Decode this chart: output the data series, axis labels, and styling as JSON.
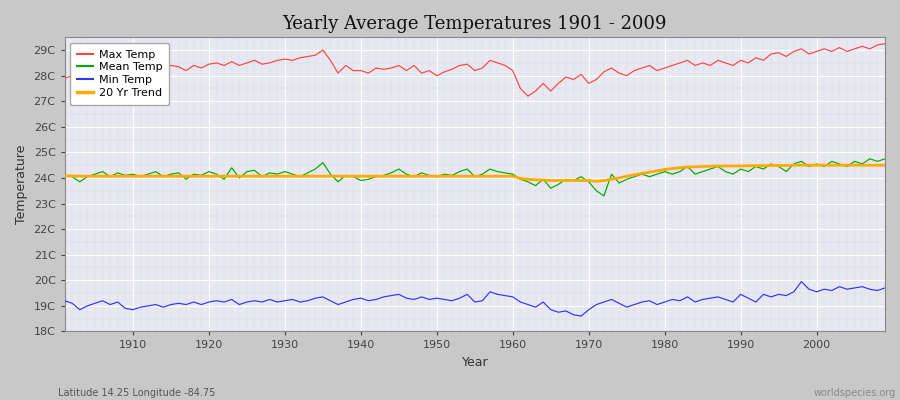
{
  "title": "Yearly Average Temperatures 1901 - 2009",
  "xlabel": "Year",
  "ylabel": "Temperature",
  "bottom_left": "Latitude 14.25 Longitude -84.75",
  "bottom_right": "worldspecies.org",
  "fig_bg_color": "#c8c8c8",
  "plot_bg_color": "#e8e8f0",
  "years": [
    1901,
    1902,
    1903,
    1904,
    1905,
    1906,
    1907,
    1908,
    1909,
    1910,
    1911,
    1912,
    1913,
    1914,
    1915,
    1916,
    1917,
    1918,
    1919,
    1920,
    1921,
    1922,
    1923,
    1924,
    1925,
    1926,
    1927,
    1928,
    1929,
    1930,
    1931,
    1932,
    1933,
    1934,
    1935,
    1936,
    1937,
    1938,
    1939,
    1940,
    1941,
    1942,
    1943,
    1944,
    1945,
    1946,
    1947,
    1948,
    1949,
    1950,
    1951,
    1952,
    1953,
    1954,
    1955,
    1956,
    1957,
    1958,
    1959,
    1960,
    1961,
    1962,
    1963,
    1964,
    1965,
    1966,
    1967,
    1968,
    1969,
    1970,
    1971,
    1972,
    1973,
    1974,
    1975,
    1976,
    1977,
    1978,
    1979,
    1980,
    1981,
    1982,
    1983,
    1984,
    1985,
    1986,
    1987,
    1988,
    1989,
    1990,
    1991,
    1992,
    1993,
    1994,
    1995,
    1996,
    1997,
    1998,
    1999,
    2000,
    2001,
    2002,
    2003,
    2004,
    2005,
    2006,
    2007,
    2008,
    2009
  ],
  "max_temp": [
    27.9,
    28.0,
    28.1,
    28.15,
    28.0,
    28.2,
    28.1,
    28.3,
    28.2,
    28.05,
    28.1,
    28.2,
    28.3,
    28.25,
    28.4,
    28.35,
    28.2,
    28.4,
    28.3,
    28.45,
    28.5,
    28.4,
    28.55,
    28.4,
    28.5,
    28.6,
    28.45,
    28.5,
    28.6,
    28.65,
    28.6,
    28.7,
    28.75,
    28.8,
    29.0,
    28.6,
    28.1,
    28.4,
    28.2,
    28.2,
    28.1,
    28.3,
    28.25,
    28.3,
    28.4,
    28.2,
    28.4,
    28.1,
    28.2,
    28.0,
    28.15,
    28.25,
    28.4,
    28.45,
    28.2,
    28.3,
    28.6,
    28.5,
    28.4,
    28.2,
    27.5,
    27.2,
    27.4,
    27.7,
    27.4,
    27.7,
    27.95,
    27.85,
    28.05,
    27.7,
    27.85,
    28.15,
    28.3,
    28.1,
    28.0,
    28.2,
    28.3,
    28.4,
    28.2,
    28.3,
    28.4,
    28.5,
    28.6,
    28.4,
    28.5,
    28.4,
    28.6,
    28.5,
    28.4,
    28.6,
    28.5,
    28.7,
    28.6,
    28.85,
    28.9,
    28.75,
    28.95,
    29.05,
    28.85,
    28.95,
    29.05,
    28.95,
    29.1,
    28.95,
    29.05,
    29.15,
    29.05,
    29.2,
    29.25
  ],
  "mean_temp": [
    24.1,
    24.05,
    23.85,
    24.05,
    24.15,
    24.25,
    24.05,
    24.2,
    24.1,
    24.15,
    24.05,
    24.15,
    24.25,
    24.05,
    24.15,
    24.2,
    23.95,
    24.15,
    24.1,
    24.25,
    24.15,
    23.95,
    24.4,
    24.0,
    24.25,
    24.3,
    24.05,
    24.2,
    24.15,
    24.25,
    24.15,
    24.05,
    24.2,
    24.35,
    24.6,
    24.15,
    23.85,
    24.1,
    24.05,
    23.9,
    23.95,
    24.05,
    24.1,
    24.2,
    24.35,
    24.15,
    24.05,
    24.2,
    24.1,
    24.05,
    24.15,
    24.1,
    24.25,
    24.35,
    24.05,
    24.15,
    24.35,
    24.25,
    24.2,
    24.15,
    23.95,
    23.85,
    23.7,
    23.95,
    23.6,
    23.75,
    23.95,
    23.9,
    24.05,
    23.85,
    23.5,
    23.3,
    24.15,
    23.8,
    23.95,
    24.05,
    24.15,
    24.05,
    24.15,
    24.25,
    24.15,
    24.25,
    24.45,
    24.15,
    24.25,
    24.35,
    24.45,
    24.25,
    24.15,
    24.35,
    24.25,
    24.45,
    24.35,
    24.55,
    24.45,
    24.25,
    24.55,
    24.65,
    24.45,
    24.55,
    24.45,
    24.65,
    24.55,
    24.45,
    24.65,
    24.55,
    24.75,
    24.65,
    24.75
  ],
  "min_temp": [
    19.2,
    19.1,
    18.85,
    19.0,
    19.1,
    19.2,
    19.05,
    19.15,
    18.9,
    18.85,
    18.95,
    19.0,
    19.05,
    18.95,
    19.05,
    19.1,
    19.05,
    19.15,
    19.05,
    19.15,
    19.2,
    19.15,
    19.25,
    19.05,
    19.15,
    19.2,
    19.15,
    19.25,
    19.15,
    19.2,
    19.25,
    19.15,
    19.2,
    19.3,
    19.35,
    19.2,
    19.05,
    19.15,
    19.25,
    19.3,
    19.2,
    19.25,
    19.35,
    19.4,
    19.45,
    19.3,
    19.25,
    19.35,
    19.25,
    19.3,
    19.25,
    19.2,
    19.3,
    19.45,
    19.15,
    19.2,
    19.55,
    19.45,
    19.4,
    19.35,
    19.15,
    19.05,
    18.95,
    19.15,
    18.85,
    18.75,
    18.8,
    18.65,
    18.6,
    18.85,
    19.05,
    19.15,
    19.25,
    19.1,
    18.95,
    19.05,
    19.15,
    19.2,
    19.05,
    19.15,
    19.25,
    19.2,
    19.35,
    19.15,
    19.25,
    19.3,
    19.35,
    19.25,
    19.15,
    19.45,
    19.3,
    19.15,
    19.45,
    19.35,
    19.45,
    19.4,
    19.55,
    19.95,
    19.65,
    19.55,
    19.65,
    19.6,
    19.75,
    19.65,
    19.7,
    19.75,
    19.65,
    19.6,
    19.7
  ],
  "trend": [
    24.08,
    24.08,
    24.07,
    24.07,
    24.07,
    24.07,
    24.07,
    24.07,
    24.07,
    24.07,
    24.07,
    24.07,
    24.07,
    24.07,
    24.07,
    24.07,
    24.07,
    24.07,
    24.07,
    24.07,
    24.07,
    24.07,
    24.07,
    24.07,
    24.07,
    24.07,
    24.07,
    24.07,
    24.07,
    24.07,
    24.07,
    24.07,
    24.07,
    24.07,
    24.07,
    24.07,
    24.07,
    24.07,
    24.07,
    24.07,
    24.07,
    24.07,
    24.07,
    24.07,
    24.07,
    24.07,
    24.07,
    24.07,
    24.07,
    24.07,
    24.07,
    24.07,
    24.07,
    24.07,
    24.07,
    24.07,
    24.07,
    24.07,
    24.07,
    24.07,
    23.98,
    23.95,
    23.93,
    23.92,
    23.9,
    23.9,
    23.9,
    23.9,
    23.9,
    23.9,
    23.87,
    23.9,
    23.95,
    24.0,
    24.07,
    24.12,
    24.18,
    24.23,
    24.28,
    24.33,
    24.37,
    24.4,
    24.43,
    24.44,
    24.45,
    24.46,
    24.47,
    24.47,
    24.47,
    24.47,
    24.48,
    24.48,
    24.48,
    24.49,
    24.49,
    24.49,
    24.5,
    24.5,
    24.5,
    24.5,
    24.5,
    24.5,
    24.5,
    24.5,
    24.5,
    24.5,
    24.5,
    24.5,
    24.5
  ],
  "ylim": [
    18.0,
    29.5
  ],
  "yticks": [
    18,
    19,
    20,
    21,
    22,
    23,
    24,
    25,
    26,
    27,
    28,
    29
  ],
  "ytick_labels": [
    "18C",
    "19C",
    "20C",
    "21C",
    "22C",
    "23C",
    "24C",
    "25C",
    "26C",
    "27C",
    "28C",
    "29C"
  ],
  "xlim": [
    1901,
    2009
  ],
  "xticks": [
    1910,
    1920,
    1930,
    1940,
    1950,
    1960,
    1970,
    1980,
    1990,
    2000
  ],
  "max_color": "#ff4444",
  "mean_color": "#00aa00",
  "min_color": "#3333ff",
  "trend_color": "#ffaa00",
  "legend_labels": [
    "Max Temp",
    "Mean Temp",
    "Min Temp",
    "20 Yr Trend"
  ],
  "legend_colors": [
    "#ff4444",
    "#00aa00",
    "#3333ff",
    "#ffaa00"
  ]
}
